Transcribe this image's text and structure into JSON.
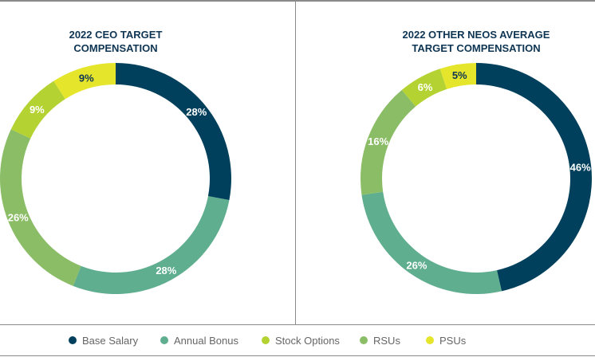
{
  "chart_data": [
    {
      "type": "pie",
      "donut": true,
      "title_lines": [
        "2022 CEO TARGET",
        "COMPENSATION"
      ],
      "categories": [
        "Base Salary",
        "Annual Bonus",
        "RSUs",
        "Stock Options",
        "PSUs"
      ],
      "values": [
        28,
        28,
        26,
        9,
        9
      ],
      "labels": [
        "28%",
        "28%",
        "26%",
        "9%",
        "9%"
      ]
    },
    {
      "type": "pie",
      "donut": true,
      "title_lines": [
        "2022 OTHER NEOS AVERAGE",
        "TARGET COMPENSATION"
      ],
      "categories": [
        "Base Salary",
        "Annual Bonus",
        "RSUs",
        "Stock Options",
        "PSUs"
      ],
      "values": [
        46,
        26,
        16,
        6,
        5
      ],
      "labels": [
        "46%",
        "26%",
        "16%",
        "6%",
        "5%"
      ]
    }
  ],
  "legend": [
    {
      "label": "Base Salary",
      "color": "#01405c"
    },
    {
      "label": "Annual Bonus",
      "color": "#5fae8f"
    },
    {
      "label": "Stock Options",
      "color": "#b4d333"
    },
    {
      "label": "RSUs",
      "color": "#8bbd66"
    },
    {
      "label": "PSUs",
      "color": "#e5e52b"
    }
  ],
  "colors": {
    "Base Salary": "#01405c",
    "Annual Bonus": "#5fae8f",
    "Stock Options": "#b4d333",
    "RSUs": "#8bbd66",
    "PSUs": "#e5e52b"
  }
}
